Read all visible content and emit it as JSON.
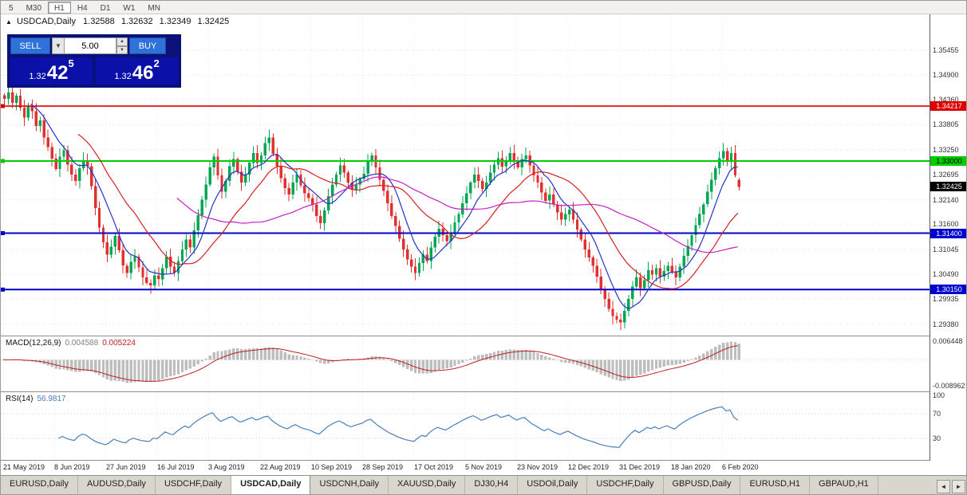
{
  "toolbar": {
    "timeframes": [
      "5",
      "M30",
      "H1",
      "H4",
      "D1",
      "W1",
      "MN"
    ],
    "active": "H1"
  },
  "chart_title": {
    "collapse_icon": "▲",
    "symbol": "USDCAD,Daily",
    "open": "1.32588",
    "high": "1.32632",
    "low": "1.32349",
    "close": "1.32425"
  },
  "trade_panel": {
    "sell_label": "SELL",
    "buy_label": "BUY",
    "lot_value": "5.00",
    "lot_dropdown_icon": "▼",
    "spin_up_icon": "▲",
    "spin_down_icon": "▼",
    "sell_price": {
      "prefix": "1.32",
      "big": "42",
      "sup": "5"
    },
    "buy_price": {
      "prefix": "1.32",
      "big": "46",
      "sup": "2"
    }
  },
  "price_axis": {
    "labels": [
      "1.35455",
      "1.34900",
      "1.34360",
      "1.33805",
      "1.33250",
      "1.32695",
      "1.32140",
      "1.31600",
      "1.31045",
      "1.30490",
      "1.29935",
      "1.29380"
    ],
    "max": 1.3625,
    "min": 1.2913,
    "current_price": {
      "label": "1.32425",
      "bg": "#000000",
      "fg": "#ffffff"
    }
  },
  "levels": [
    {
      "price": 1.34217,
      "label": "1.34217",
      "color": "#dd0000",
      "text_color": "#ffffff",
      "width": 1.6
    },
    {
      "price": 1.33,
      "label": "1.33000",
      "color": "#00cc00",
      "text_color": "#000000",
      "width": 2
    },
    {
      "price": 1.314,
      "label": "1.31400",
      "color": "#0000cc",
      "text_color": "#ffffff",
      "width": 2
    },
    {
      "price": 1.3015,
      "label": "1.30150",
      "color": "#0000cc",
      "text_color": "#ffffff",
      "width": 2
    }
  ],
  "macd_panel": {
    "label": "MACD(12,26,9)",
    "main_value": "0.004588",
    "signal_value": "0.005224",
    "axis_max": "0.006448",
    "axis_min": "-0.008962",
    "fast": 12,
    "slow": 26,
    "signal": 9,
    "histogram_color": "#bdbdbd",
    "signal_color": "#c02020"
  },
  "rsi_panel": {
    "label": "RSI(14)",
    "value": "56.9817",
    "period": 14,
    "axis_labels": [
      "100",
      "70",
      "30"
    ],
    "levels": [
      70,
      30
    ],
    "line_color": "#4a7ebb"
  },
  "date_axis": {
    "labels": [
      "21 May 2019",
      "8 Jun 2019",
      "27 Jun 2019",
      "16 Jul 2019",
      "3 Aug 2019",
      "22 Aug 2019",
      "10 Sep 2019",
      "28 Sep 2019",
      "17 Oct 2019",
      "5 Nov 2019",
      "23 Nov 2019",
      "12 Dec 2019",
      "31 Dec 2019",
      "18 Jan 2020",
      "6 Feb 2020"
    ],
    "bars_per_label": 13
  },
  "tabs": {
    "items": [
      "EURUSD,Daily",
      "AUDUSD,Daily",
      "USDCHF,Daily",
      "USDCAD,Daily",
      "USDCNH,Daily",
      "XAUUSD,Daily",
      "DJ30,H4",
      "USDOil,Daily",
      "USDCHF,Daily",
      "GBPUSD,Daily",
      "EURUSD,H1",
      "GBPAUD,H1"
    ],
    "active_index": 3,
    "scroll_left_icon": "◄",
    "scroll_right_icon": "►"
  },
  "chart_data": {
    "type": "candlestick",
    "symbol": "USDCAD",
    "timeframe": "Daily",
    "up_color": "#00a651",
    "down_color": "#e03131",
    "ma": [
      {
        "period": 8,
        "color": "#2433c8"
      },
      {
        "period": 20,
        "color": "#d42020"
      },
      {
        "period": 45,
        "color": "#c520c5"
      }
    ],
    "last_candle": {
      "open": 1.32588,
      "high": 1.32632,
      "low": 1.32349,
      "close": 1.32425
    },
    "closes": [
      1.3438,
      1.3452,
      1.3429,
      1.3445,
      1.3418,
      1.3396,
      1.3422,
      1.341,
      1.3378,
      1.339,
      1.3352,
      1.3331,
      1.3305,
      1.3282,
      1.331,
      1.3324,
      1.3292,
      1.327,
      1.3256,
      1.3284,
      1.3302,
      1.3288,
      1.3244,
      1.3196,
      1.3152,
      1.312,
      1.3092,
      1.311,
      1.3134,
      1.3102,
      1.3068,
      1.3052,
      1.3076,
      1.3088,
      1.3064,
      1.3042,
      1.303,
      1.3024,
      1.3046,
      1.3038,
      1.3062,
      1.3088,
      1.3066,
      1.3052,
      1.3078,
      1.3104,
      1.3126,
      1.3108,
      1.3146,
      1.318,
      1.3214,
      1.3248,
      1.3286,
      1.331,
      1.3268,
      1.3232,
      1.3256,
      1.3288,
      1.3304,
      1.3276,
      1.3252,
      1.327,
      1.3296,
      1.3318,
      1.3296,
      1.3312,
      1.334,
      1.3352,
      1.3316,
      1.3288,
      1.3262,
      1.324,
      1.3226,
      1.3252,
      1.327,
      1.3246,
      1.3228,
      1.3218,
      1.3204,
      1.3178,
      1.3162,
      1.319,
      1.3222,
      1.3248,
      1.327,
      1.329,
      1.3274,
      1.3252,
      1.3236,
      1.3248,
      1.326,
      1.3272,
      1.3298,
      1.3312,
      1.3286,
      1.3258,
      1.3234,
      1.3206,
      1.3178,
      1.3156,
      1.3128,
      1.3104,
      1.3082,
      1.3066,
      1.3052,
      1.3074,
      1.3092,
      1.3078,
      1.3108,
      1.3132,
      1.315,
      1.3136,
      1.3122,
      1.3142,
      1.3164,
      1.3182,
      1.3206,
      1.3228,
      1.3252,
      1.327,
      1.3256,
      1.3238,
      1.3252,
      1.3274,
      1.3292,
      1.3306,
      1.3288,
      1.3302,
      1.3318,
      1.33,
      1.3286,
      1.3304,
      1.3312,
      1.329,
      1.3268,
      1.3252,
      1.323,
      1.3212,
      1.3226,
      1.3204,
      1.3186,
      1.317,
      1.3182,
      1.3192,
      1.317,
      1.3148,
      1.3126,
      1.3104,
      1.3086,
      1.3068,
      1.3044,
      1.3016,
      1.2994,
      1.2972,
      1.2956,
      1.2948,
      1.2942,
      1.2968,
      1.2994,
      1.3022,
      1.3042,
      1.3018,
      1.3036,
      1.3058,
      1.3048,
      1.3062,
      1.3044,
      1.3056,
      1.3068,
      1.3054,
      1.3042,
      1.3066,
      1.309,
      1.3112,
      1.3136,
      1.3158,
      1.3182,
      1.3204,
      1.3232,
      1.3258,
      1.3284,
      1.3306,
      1.3322,
      1.3298,
      1.3318,
      1.3268,
      1.32425
    ]
  }
}
